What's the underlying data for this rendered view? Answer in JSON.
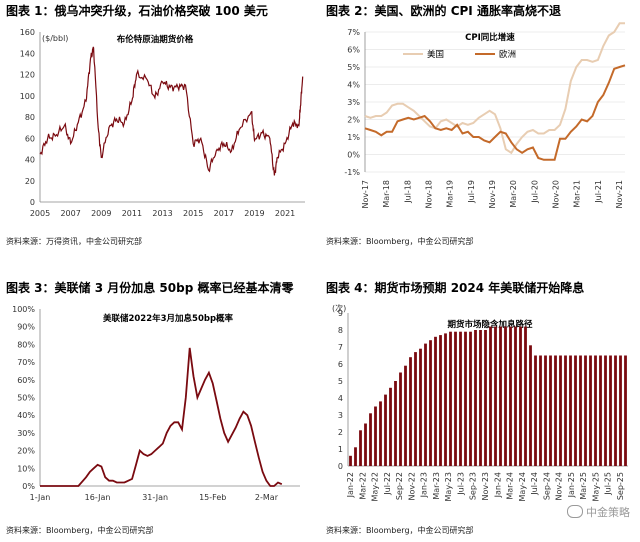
{
  "panels": [
    {
      "heading": "图表 1：俄乌冲突升级，石油价格突破 100 美元",
      "source": "资料来源：万得资讯，中金公司研究部"
    },
    {
      "heading": "图表 2：美国、欧洲的 CPI 通胀率高烧不退",
      "source": "资料来源：Bloomberg，中金公司研究部"
    },
    {
      "heading": "图表 3：美联储 3 月份加息 50bp 概率已经基本清零",
      "source": "资料来源：Bloomberg，中金公司研究部"
    },
    {
      "heading": "图表 4：期货市场预期 2024 年美联储开始降息",
      "source": "资料来源：Bloomberg，中金公司研究部"
    }
  ],
  "watermark": "中金策略",
  "colors": {
    "darkred": "#7a0a10",
    "cpi_us": "#e8cdb2",
    "cpi_eu": "#c46a2a",
    "grid": "#d9d9d9"
  },
  "chart_data": [
    {
      "type": "line",
      "title": "布伦特原油期货价格",
      "ylabel": "($/bbl)",
      "ylim": [
        0,
        160
      ],
      "yticks": [
        0,
        20,
        40,
        60,
        80,
        100,
        120,
        140,
        160
      ],
      "xlim": [
        2005,
        2022.3
      ],
      "xticks": [
        "2005",
        "2007",
        "2009",
        "2011",
        "2013",
        "2015",
        "2017",
        "2019",
        "2021"
      ],
      "x": [
        2005.0,
        2005.5,
        2006.0,
        2006.6,
        2007.0,
        2007.5,
        2008.0,
        2008.3,
        2008.5,
        2008.8,
        2009.0,
        2009.5,
        2010.0,
        2010.5,
        2011.0,
        2011.3,
        2012.0,
        2012.5,
        2013.0,
        2013.5,
        2014.0,
        2014.5,
        2015.0,
        2015.5,
        2016.0,
        2016.5,
        2017.0,
        2017.5,
        2018.0,
        2018.8,
        2019.0,
        2019.5,
        2020.0,
        2020.3,
        2020.5,
        2021.0,
        2021.5,
        2021.9,
        2022.0,
        2022.15
      ],
      "y": [
        45,
        60,
        62,
        72,
        55,
        75,
        95,
        135,
        145,
        70,
        42,
        70,
        78,
        74,
        95,
        120,
        115,
        98,
        113,
        108,
        108,
        110,
        55,
        60,
        30,
        48,
        55,
        48,
        68,
        85,
        58,
        65,
        60,
        25,
        42,
        55,
        74,
        72,
        90,
        118
      ]
    },
    {
      "type": "line",
      "title": "CPI同比增速",
      "ylim": [
        -1,
        7
      ],
      "yticks": [
        "-1%",
        "0%",
        "1%",
        "2%",
        "3%",
        "4%",
        "5%",
        "6%",
        "7%"
      ],
      "xticks": [
        "Nov-17",
        "Mar-18",
        "Jul-18",
        "Nov-18",
        "Mar-19",
        "Jul-19",
        "Nov-19",
        "Mar-20",
        "Jul-20",
        "Nov-20",
        "Mar-21",
        "Jul-21",
        "Nov-21"
      ],
      "series": [
        {
          "name": "美国",
          "values": [
            2.2,
            2.1,
            2.2,
            2.2,
            2.4,
            2.8,
            2.9,
            2.9,
            2.7,
            2.5,
            2.2,
            1.9,
            1.6,
            1.5,
            1.9,
            2.0,
            1.8,
            1.6,
            1.8,
            1.7,
            1.8,
            2.1,
            2.3,
            2.5,
            2.3,
            1.5,
            0.3,
            0.1,
            0.6,
            1.0,
            1.3,
            1.4,
            1.2,
            1.2,
            1.4,
            1.4,
            1.7,
            2.6,
            4.2,
            5.0,
            5.4,
            5.4,
            5.3,
            5.4,
            6.2,
            6.8,
            7.0,
            7.5,
            7.5
          ]
        },
        {
          "name": "欧洲",
          "values": [
            1.5,
            1.4,
            1.3,
            1.1,
            1.3,
            1.3,
            1.9,
            2.0,
            2.1,
            2.0,
            2.1,
            2.2,
            1.9,
            1.5,
            1.4,
            1.5,
            1.4,
            1.7,
            1.2,
            1.3,
            1.0,
            1.0,
            0.8,
            0.7,
            1.0,
            1.3,
            1.2,
            0.7,
            0.3,
            0.1,
            0.3,
            0.4,
            -0.2,
            -0.3,
            -0.3,
            -0.3,
            0.9,
            0.9,
            1.3,
            1.6,
            2.0,
            1.9,
            2.2,
            3.0,
            3.4,
            4.1,
            4.9,
            5.0,
            5.1
          ]
        }
      ]
    },
    {
      "type": "line",
      "title": "美联储2022年3月加息50bp概率",
      "ylim": [
        0,
        100
      ],
      "yticks": [
        "0%",
        "10%",
        "20%",
        "30%",
        "40%",
        "50%",
        "60%",
        "70%",
        "80%",
        "90%",
        "100%"
      ],
      "xticks": [
        "1-Jan",
        "16-Jan",
        "31-Jan",
        "15-Feb",
        "2-Mar"
      ],
      "x": [
        0,
        10,
        12,
        13,
        14,
        15,
        16,
        17,
        18,
        19,
        20,
        21,
        22,
        23,
        24,
        25,
        26,
        27,
        28,
        29,
        30,
        31,
        32,
        33,
        34,
        35,
        36,
        37,
        38,
        39,
        40,
        41,
        42,
        43,
        44,
        45,
        46,
        47,
        48,
        49,
        50,
        51,
        52,
        53,
        54,
        55,
        56,
        57,
        58,
        59,
        60,
        61,
        62,
        63
      ],
      "y": [
        0,
        0,
        5,
        8,
        10,
        12,
        11,
        5,
        3,
        3,
        2,
        2,
        2,
        3,
        4,
        12,
        20,
        18,
        17,
        18,
        20,
        22,
        24,
        30,
        34,
        36,
        36,
        32,
        50,
        78,
        62,
        50,
        55,
        60,
        64,
        58,
        48,
        38,
        30,
        25,
        29,
        33,
        38,
        42,
        40,
        34,
        25,
        16,
        8,
        3,
        0,
        0,
        2,
        1
      ]
    },
    {
      "type": "bar",
      "title": "期货市场隐含加息路径",
      "ylabel": "(次)",
      "ylim": [
        0,
        9
      ],
      "yticks": [
        "0",
        "1",
        "2",
        "3",
        "4",
        "5",
        "6",
        "7",
        "8",
        "9"
      ],
      "xticks": [
        "Jan-22",
        "Mar-22",
        "May-22",
        "Jul-22",
        "Sep-22",
        "Nov-22",
        "Jan-23",
        "Mar-23",
        "May-23",
        "Jul-23",
        "Sep-23",
        "Nov-23",
        "Jan-24",
        "Mar-24",
        "May-24",
        "Jul-24",
        "Sep-24",
        "Nov-24",
        "Jan-25",
        "Mar-25",
        "May-25",
        "Jul-25",
        "Sep-25"
      ],
      "values": [
        0.6,
        1.1,
        2.1,
        2.5,
        3.1,
        3.5,
        3.8,
        4.2,
        4.6,
        5.0,
        5.5,
        5.9,
        6.4,
        6.7,
        6.9,
        7.2,
        7.4,
        7.6,
        7.7,
        7.8,
        7.9,
        7.9,
        7.9,
        7.9,
        7.9,
        8.0,
        8.0,
        8.0,
        8.2,
        8.2,
        8.2,
        8.2,
        8.2,
        8.2,
        8.2,
        8.2,
        7.1,
        6.5,
        6.5,
        6.5,
        6.5,
        6.5,
        6.5,
        6.5,
        6.5,
        6.5,
        6.5,
        6.5,
        6.5,
        6.5,
        6.5,
        6.5,
        6.5,
        6.5,
        6.5,
        6.5
      ]
    }
  ]
}
